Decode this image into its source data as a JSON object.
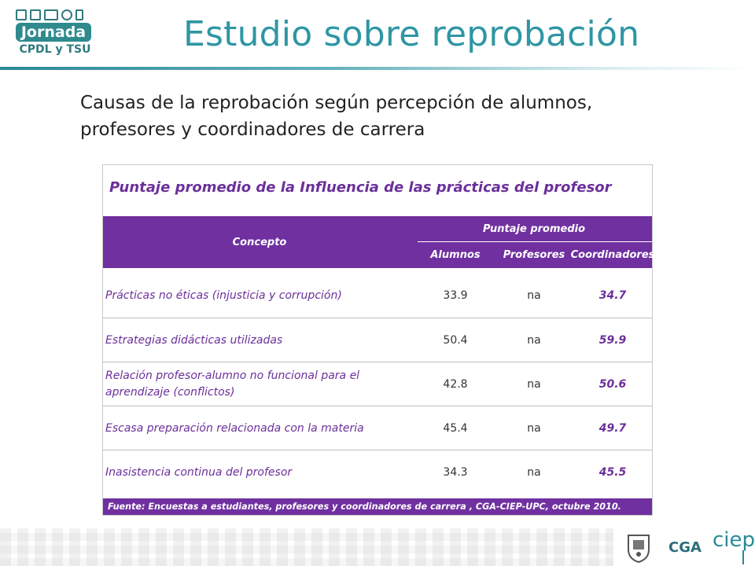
{
  "logo": {
    "badge_text": "Jornada",
    "sub_text": "CPDL y TSU"
  },
  "slide": {
    "title": "Estudio sobre reprobación",
    "subtitle_line1": "Causas de la reprobación según percepción de alumnos,",
    "subtitle_line2": "profesores y coordinadores de carrera"
  },
  "table": {
    "title": "Puntaje promedio de la Influencia de las prácticas del profesor",
    "header": {
      "concept": "Concepto",
      "group": "Puntaje promedio",
      "cols": [
        "Alumnos",
        "Profesores",
        "Coordinadores"
      ]
    },
    "rows": [
      {
        "concept": "Prácticas no éticas (injusticia y corrupción)",
        "alumnos": "33.9",
        "profesores": "na",
        "coordinadores": "34.7"
      },
      {
        "concept": "Estrategias didácticas utilizadas",
        "alumnos": "50.4",
        "profesores": "na",
        "coordinadores": "59.9"
      },
      {
        "concept": "Relación profesor-alumno no funcional para el aprendizaje (conflictos)",
        "alumnos": "42.8",
        "profesores": "na",
        "coordinadores": "50.6"
      },
      {
        "concept": "Escasa preparación relacionada con la materia",
        "alumnos": "45.4",
        "profesores": "na",
        "coordinadores": "49.7"
      },
      {
        "concept": "Inasistencia continua del profesor",
        "alumnos": "34.3",
        "profesores": "na",
        "coordinadores": "45.5"
      }
    ],
    "footer": "Fuente:  Encuestas a estudiantes, profesores y coordinadores de carrera , CGA-CIEP-UPC, octubre 2010."
  },
  "branding": {
    "cga": "CGA",
    "ciep": "ciep"
  }
}
